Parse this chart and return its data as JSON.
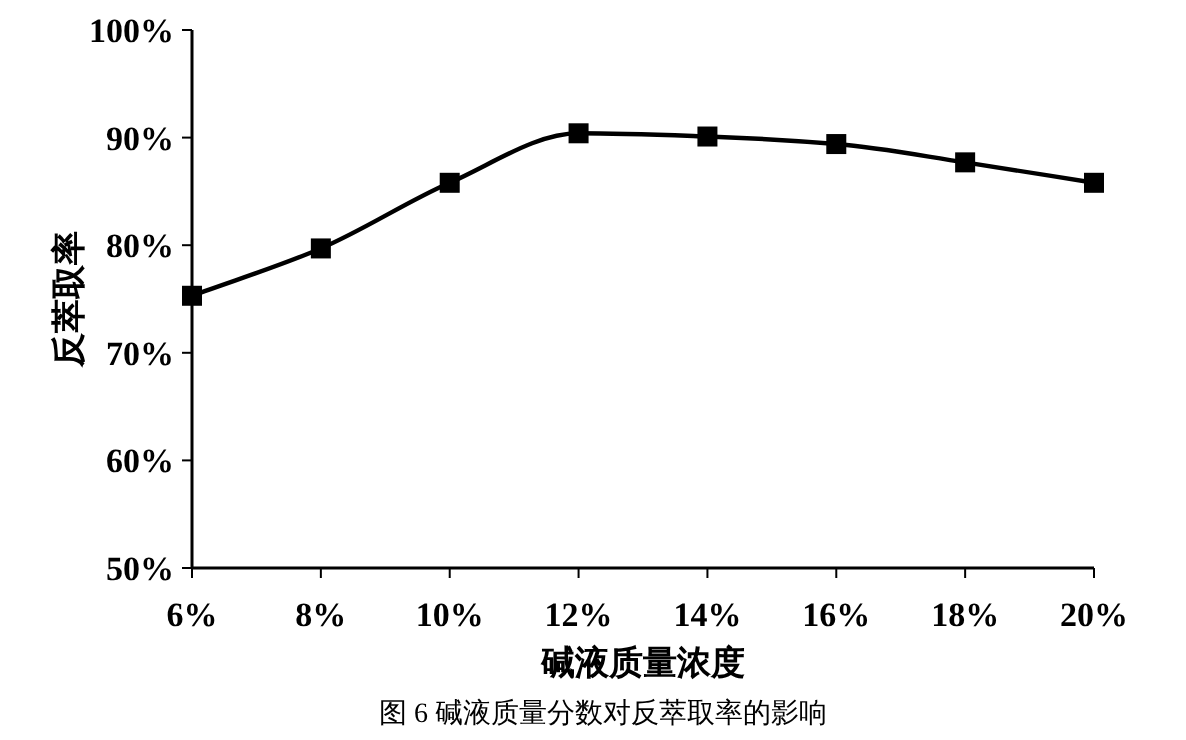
{
  "chart_data": {
    "type": "line",
    "title": "图 6 碱液质量分数对反萃取率的影响",
    "xlabel": "碱液质量浓度",
    "ylabel": "反萃取率",
    "x": [
      6,
      8,
      10,
      12,
      14,
      16,
      18,
      20
    ],
    "series": [
      {
        "color": "#000000",
        "values": [
          75.3,
          79.7,
          85.8,
          90.4,
          90.1,
          89.4,
          87.7,
          85.8
        ]
      }
    ],
    "xlim": [
      6,
      20
    ],
    "xticks": [
      {
        "value": 6,
        "label": "6%"
      },
      {
        "value": 8,
        "label": "8%"
      },
      {
        "value": 10,
        "label": "10%"
      },
      {
        "value": 12,
        "label": "12%"
      },
      {
        "value": 14,
        "label": "14%"
      },
      {
        "value": 16,
        "label": "16%"
      },
      {
        "value": 18,
        "label": "18%"
      },
      {
        "value": 20,
        "label": "20%"
      }
    ],
    "ylim": [
      50,
      100
    ],
    "yticks": [
      {
        "value": 50,
        "label": "50%"
      },
      {
        "value": 60,
        "label": "60%"
      },
      {
        "value": 70,
        "label": "70%"
      },
      {
        "value": 80,
        "label": "80%"
      },
      {
        "value": 90,
        "label": "90%"
      },
      {
        "value": 100,
        "label": "100%"
      }
    ],
    "marker": "square",
    "line_style": "solid"
  }
}
